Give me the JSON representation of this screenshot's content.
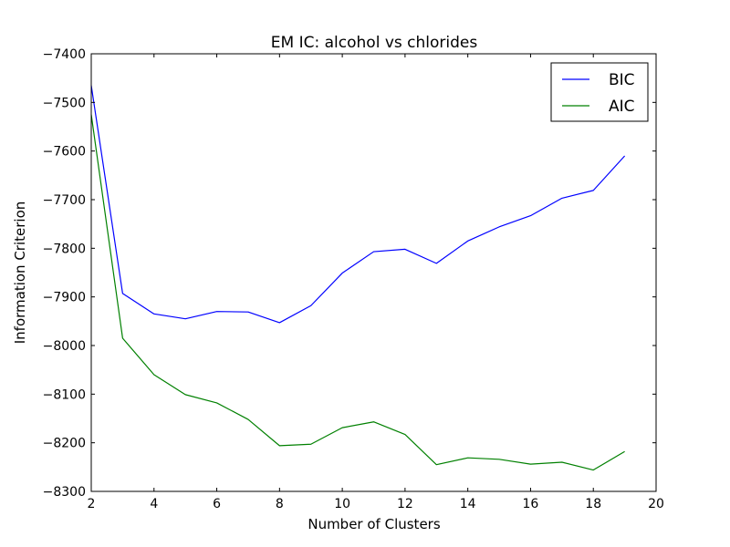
{
  "chart_data": {
    "type": "line",
    "title": "EM IC: alcohol vs chlorides",
    "xlabel": "Number of Clusters",
    "ylabel": "Information Criterion",
    "xlim": [
      2,
      20
    ],
    "ylim": [
      -8300,
      -7400
    ],
    "xticks": [
      2,
      4,
      6,
      8,
      10,
      12,
      14,
      16,
      18,
      20
    ],
    "yticks": [
      -7400,
      -7500,
      -7600,
      -7700,
      -7800,
      -7900,
      -8000,
      -8100,
      -8200,
      -8300
    ],
    "grid": false,
    "legend_position": "top-right",
    "x": [
      2,
      3,
      4,
      5,
      6,
      7,
      8,
      9,
      10,
      11,
      12,
      13,
      14,
      15,
      16,
      17,
      18,
      19
    ],
    "series": [
      {
        "name": "BIC",
        "color": "#0000ff",
        "values": [
          -7465,
          -7893,
          -7935,
          -7945,
          -7930,
          -7931,
          -7953,
          -7918,
          -7851,
          -7807,
          -7802,
          -7831,
          -7785,
          -7756,
          -7733,
          -7697,
          -7681,
          -7610
        ]
      },
      {
        "name": "AIC",
        "color": "#008000",
        "values": [
          -7525,
          -7985,
          -8060,
          -8101,
          -8118,
          -8152,
          -8206,
          -8203,
          -8169,
          -8157,
          -8183,
          -8245,
          -8231,
          -8234,
          -8244,
          -8240,
          -8256,
          -8218
        ]
      }
    ]
  }
}
